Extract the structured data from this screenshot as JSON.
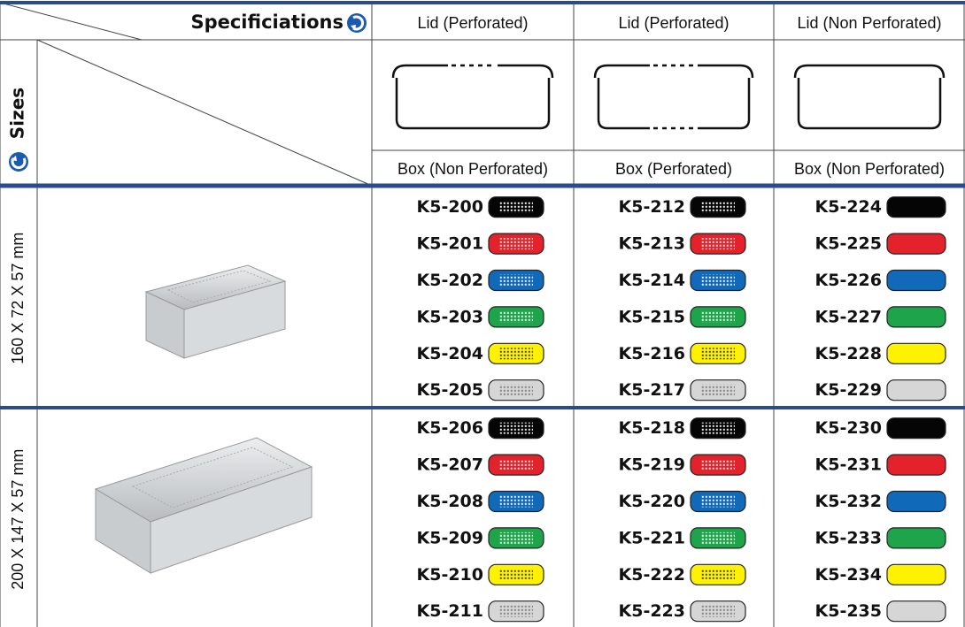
{
  "header": {
    "spec_label": "Specificiations",
    "sizes_label": "Sizes"
  },
  "columns": [
    {
      "lid": "Lid (Perforated)",
      "box": "Box (Non Perforated)"
    },
    {
      "lid": "Lid (Perforated)",
      "box": "Box (Perforated)"
    },
    {
      "lid": "Lid (Non Perforated)",
      "box": "Box (Non Perforated)"
    }
  ],
  "swatch_colors": [
    "#050505",
    "#e3222b",
    "#1169b9",
    "#1ea54b",
    "#fff200",
    "#d6d6d6"
  ],
  "groups": [
    {
      "size": "160 X 72 X 57 mm",
      "rows": [
        [
          "K5-200",
          "K5-212",
          "K5-224"
        ],
        [
          "K5-201",
          "K5-213",
          "K5-225"
        ],
        [
          "K5-202",
          "K5-214",
          "K5-226"
        ],
        [
          "K5-203",
          "K5-215",
          "K5-227"
        ],
        [
          "K5-204",
          "K5-216",
          "K5-228"
        ],
        [
          "K5-205",
          "K5-217",
          "K5-229"
        ]
      ]
    },
    {
      "size": "200 X 147 X 57 mm",
      "rows": [
        [
          "K5-206",
          "K5-218",
          "K5-230"
        ],
        [
          "K5-207",
          "K5-219",
          "K5-231"
        ],
        [
          "K5-208",
          "K5-220",
          "K5-232"
        ],
        [
          "K5-209",
          "K5-221",
          "K5-233"
        ],
        [
          "K5-210",
          "K5-222",
          "K5-234"
        ],
        [
          "K5-211",
          "K5-223",
          "K5-235"
        ]
      ]
    }
  ]
}
